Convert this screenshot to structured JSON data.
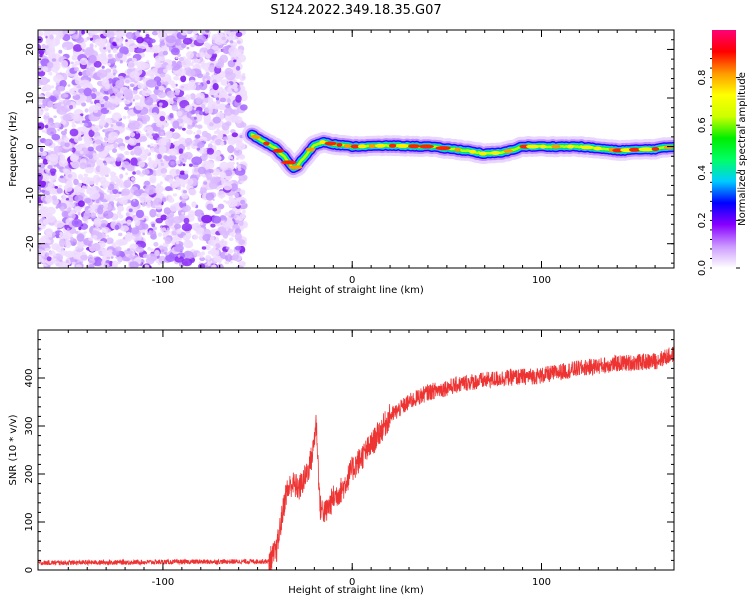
{
  "title": "S124.2022.349.18.35.G07",
  "chart_data": [
    {
      "type": "heatmap",
      "xlabel": "Height of straight line (km)",
      "ylabel": "Frequency (Hz)",
      "xlim": [
        -166,
        170
      ],
      "ylim": [
        -25,
        24
      ],
      "x_ticks": [
        -100,
        0,
        100
      ],
      "y_ticks": [
        -20,
        -10,
        0,
        10,
        20
      ],
      "noise_region_x": [
        -166,
        -57
      ],
      "ridge_x": [
        -53,
        -47,
        -40,
        -35,
        -31,
        -29,
        -25,
        -20,
        -15,
        -10,
        0,
        20,
        40,
        60,
        70,
        80,
        90,
        100,
        120,
        140,
        160,
        170
      ],
      "ridge_y": [
        2.5,
        1.0,
        -0.5,
        -2.5,
        -4.5,
        -4.0,
        -2.0,
        0.3,
        1.0,
        0.5,
        0.0,
        0.2,
        0.0,
        -0.8,
        -1.5,
        -1.2,
        0.0,
        0.0,
        0.0,
        -0.8,
        -0.5,
        0.0
      ],
      "colorbar": {
        "label": "Normalized spectral amplitude",
        "range": [
          0,
          1
        ],
        "ticks": [
          "0.0",
          "0.2",
          "0.4",
          "0.6",
          "0.8"
        ],
        "colors": [
          "#ffffff",
          "#cc99ff",
          "#8800ff",
          "#0000ff",
          "#00ccff",
          "#00ff66",
          "#00ee00",
          "#ccff00",
          "#ffff00",
          "#ff9900",
          "#ff0000",
          "#ff0077"
        ]
      }
    },
    {
      "type": "line",
      "xlabel": "Height of straight line (km)",
      "ylabel": "SNR (10 * v/v)",
      "xlim": [
        -166,
        170
      ],
      "ylim": [
        0,
        500
      ],
      "x_ticks": [
        -100,
        0,
        100
      ],
      "y_ticks": [
        0,
        100,
        200,
        300,
        400
      ],
      "color": "#ee3333",
      "x": [
        -166,
        -44,
        -40,
        -38,
        -35,
        -32,
        -28,
        -24,
        -21,
        -19,
        -17,
        -14,
        -10,
        -5,
        0,
        10,
        20,
        30,
        40,
        60,
        80,
        100,
        120,
        140,
        160,
        170
      ],
      "y": [
        15,
        18,
        40,
        90,
        160,
        180,
        170,
        200,
        240,
        310,
        130,
        120,
        150,
        170,
        210,
        260,
        320,
        350,
        370,
        390,
        400,
        405,
        420,
        430,
        435,
        450
      ]
    }
  ]
}
